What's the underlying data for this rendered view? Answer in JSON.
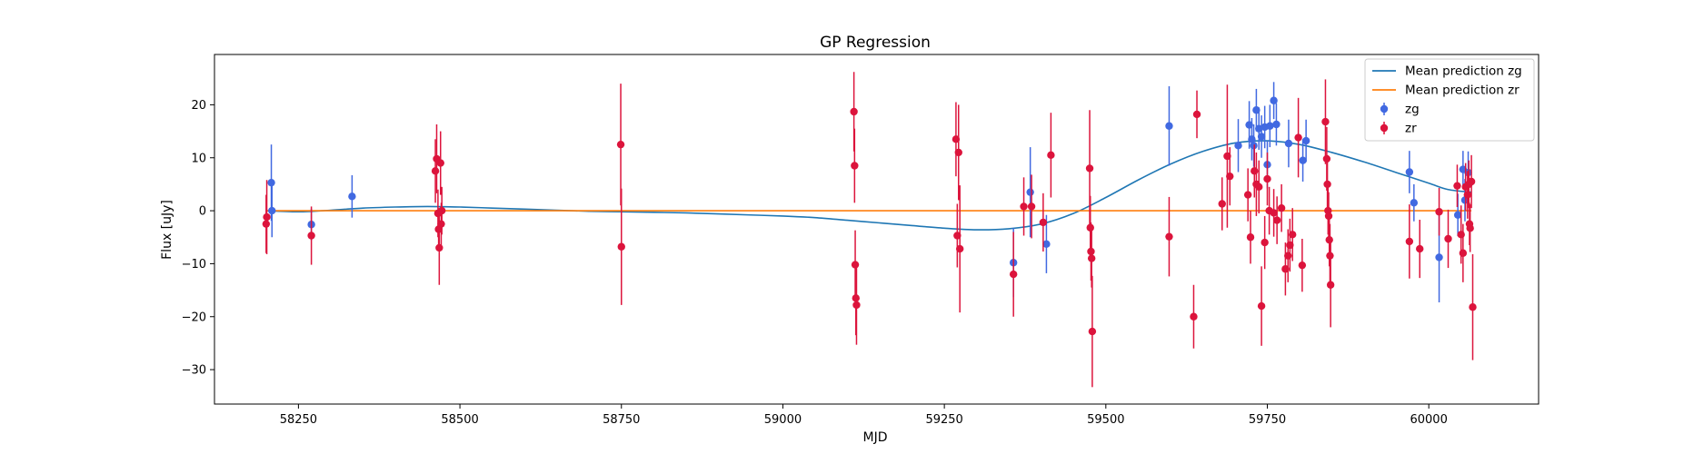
{
  "chart_data": {
    "type": "scatter",
    "title": "GP Regression",
    "xlabel": "MJD",
    "ylabel": "Flux [uJy]",
    "xlim": [
      58120,
      60170
    ],
    "ylim": [
      -36.5,
      29.5
    ],
    "xticks": [
      58250,
      58500,
      58750,
      59000,
      59250,
      59500,
      59750,
      60000
    ],
    "yticks": [
      -30,
      -20,
      -10,
      0,
      10,
      20
    ],
    "grid": false,
    "legend": "upper right",
    "lines": [
      {
        "name": "Mean prediction zg",
        "color": "#1f77b4",
        "x": [
          58200,
          58250,
          58300,
          58350,
          58400,
          58450,
          58500,
          58550,
          58600,
          58650,
          58700,
          58750,
          58800,
          58850,
          58900,
          58950,
          59000,
          59050,
          59100,
          59150,
          59200,
          59250,
          59300,
          59350,
          59400,
          59450,
          59500,
          59550,
          59600,
          59650,
          59700,
          59750,
          59800,
          59850,
          59900,
          59950,
          60000,
          60030,
          60066
        ],
        "y": [
          0.0,
          -0.2,
          0.1,
          0.5,
          0.7,
          0.8,
          0.7,
          0.5,
          0.3,
          0.1,
          -0.1,
          -0.2,
          -0.3,
          -0.4,
          -0.6,
          -0.8,
          -1.0,
          -1.3,
          -1.8,
          -2.3,
          -2.8,
          -3.3,
          -3.6,
          -3.4,
          -2.5,
          -0.5,
          2.5,
          5.8,
          8.8,
          11.2,
          12.8,
          13.2,
          12.5,
          11.0,
          9.2,
          7.2,
          5.2,
          4.0,
          3.5
        ]
      },
      {
        "name": "Mean prediction zr",
        "color": "#ff7f0e",
        "x": [
          58200,
          60066
        ],
        "y": [
          0.0,
          0.0
        ]
      }
    ],
    "series": [
      {
        "name": "zg",
        "color": "#4169e1",
        "points": [
          {
            "x": 58208,
            "y": 5.3,
            "err": 7.2
          },
          {
            "x": 58209,
            "y": 0.0,
            "err": 5.0
          },
          {
            "x": 58270,
            "y": -2.6,
            "err": 3.0
          },
          {
            "x": 58333,
            "y": 2.7,
            "err": 4.0
          },
          {
            "x": 59357,
            "y": -9.8,
            "err": 6.5
          },
          {
            "x": 59383,
            "y": 3.5,
            "err": 8.5
          },
          {
            "x": 59408,
            "y": -6.3,
            "err": 5.5
          },
          {
            "x": 59598,
            "y": 16.0,
            "err": 7.5
          },
          {
            "x": 59705,
            "y": 12.3,
            "err": 5.0
          },
          {
            "x": 59722,
            "y": 16.2,
            "err": 4.5
          },
          {
            "x": 59726,
            "y": 13.5,
            "err": 4.0
          },
          {
            "x": 59729,
            "y": 12.3,
            "err": 4.0
          },
          {
            "x": 59733,
            "y": 19.0,
            "err": 4.0
          },
          {
            "x": 59737,
            "y": 15.5,
            "err": 4.0
          },
          {
            "x": 59741,
            "y": 14.0,
            "err": 4.0
          },
          {
            "x": 59746,
            "y": 15.8,
            "err": 4.0
          },
          {
            "x": 59750,
            "y": 8.7,
            "err": 4.5
          },
          {
            "x": 59754,
            "y": 16.0,
            "err": 4.0
          },
          {
            "x": 59760,
            "y": 20.8,
            "err": 3.5
          },
          {
            "x": 59764,
            "y": 16.3,
            "err": 4.0
          },
          {
            "x": 59783,
            "y": 12.7,
            "err": 4.5
          },
          {
            "x": 59805,
            "y": 9.5,
            "err": 4.0
          },
          {
            "x": 59810,
            "y": 13.2,
            "err": 4.0
          },
          {
            "x": 59970,
            "y": 7.3,
            "err": 4.0
          },
          {
            "x": 59977,
            "y": 1.5,
            "err": 3.5
          },
          {
            "x": 60016,
            "y": -8.8,
            "err": 8.5
          },
          {
            "x": 60045,
            "y": -0.8,
            "err": 4.0
          },
          {
            "x": 60053,
            "y": 7.8,
            "err": 3.5
          },
          {
            "x": 60056,
            "y": 2.0,
            "err": 4.0
          },
          {
            "x": 60061,
            "y": 7.2,
            "err": 4.0
          }
        ]
      },
      {
        "name": "zr",
        "color": "#dc143c",
        "points": [
          {
            "x": 58200,
            "y": -2.5,
            "err": 5.5
          },
          {
            "x": 58201,
            "y": -1.2,
            "err": 7.0
          },
          {
            "x": 58270,
            "y": -4.7,
            "err": 5.5
          },
          {
            "x": 58462,
            "y": 7.5,
            "err": 6.0
          },
          {
            "x": 58464,
            "y": 9.8,
            "err": 6.5
          },
          {
            "x": 58466,
            "y": -0.5,
            "err": 4.5
          },
          {
            "x": 58467,
            "y": -3.5,
            "err": 4.0
          },
          {
            "x": 58468,
            "y": -7.0,
            "err": 7.0
          },
          {
            "x": 58470,
            "y": 9.0,
            "err": 6.0
          },
          {
            "x": 58471,
            "y": -2.5,
            "err": 4.0
          },
          {
            "x": 58472,
            "y": 0.0,
            "err": 4.5
          },
          {
            "x": 58749,
            "y": 12.5,
            "err": 11.5
          },
          {
            "x": 58750,
            "y": -6.8,
            "err": 11.0
          },
          {
            "x": 59110,
            "y": 18.7,
            "err": 7.5
          },
          {
            "x": 59111,
            "y": 8.5,
            "err": 7.0
          },
          {
            "x": 59112,
            "y": -10.2,
            "err": 6.5
          },
          {
            "x": 59113,
            "y": -16.5,
            "err": 7.0
          },
          {
            "x": 59114,
            "y": -17.8,
            "err": 7.5
          },
          {
            "x": 59268,
            "y": 13.5,
            "err": 7.0
          },
          {
            "x": 59270,
            "y": -4.7,
            "err": 6.0
          },
          {
            "x": 59272,
            "y": 11.0,
            "err": 9.0
          },
          {
            "x": 59274,
            "y": -7.2,
            "err": 12.0
          },
          {
            "x": 59357,
            "y": -12.0,
            "err": 8.0
          },
          {
            "x": 59373,
            "y": 0.8,
            "err": 5.5
          },
          {
            "x": 59385,
            "y": 0.8,
            "err": 6.0
          },
          {
            "x": 59403,
            "y": -2.2,
            "err": 5.5
          },
          {
            "x": 59415,
            "y": 10.5,
            "err": 8.0
          },
          {
            "x": 59475,
            "y": 8.0,
            "err": 11.0
          },
          {
            "x": 59476,
            "y": -3.2,
            "err": 6.0
          },
          {
            "x": 59477,
            "y": -7.7,
            "err": 5.5
          },
          {
            "x": 59478,
            "y": -9.0,
            "err": 5.5
          },
          {
            "x": 59479,
            "y": -22.8,
            "err": 10.5
          },
          {
            "x": 59598,
            "y": -4.9,
            "err": 7.5
          },
          {
            "x": 59636,
            "y": -20.0,
            "err": 6.0
          },
          {
            "x": 59641,
            "y": 18.2,
            "err": 4.5
          },
          {
            "x": 59680,
            "y": 1.3,
            "err": 5.0
          },
          {
            "x": 59688,
            "y": 10.3,
            "err": 13.5
          },
          {
            "x": 59692,
            "y": 6.5,
            "err": 5.5
          },
          {
            "x": 59720,
            "y": 3.0,
            "err": 5.0
          },
          {
            "x": 59724,
            "y": -5.0,
            "err": 5.0
          },
          {
            "x": 59730,
            "y": 7.5,
            "err": 5.0
          },
          {
            "x": 59733,
            "y": 5.0,
            "err": 6.0
          },
          {
            "x": 59737,
            "y": 4.5,
            "err": 5.0
          },
          {
            "x": 59741,
            "y": -18.0,
            "err": 7.5
          },
          {
            "x": 59746,
            "y": -6.0,
            "err": 5.0
          },
          {
            "x": 59750,
            "y": 6.0,
            "err": 5.0
          },
          {
            "x": 59753,
            "y": 0.0,
            "err": 4.5
          },
          {
            "x": 59760,
            "y": -0.4,
            "err": 4.5
          },
          {
            "x": 59765,
            "y": -1.8,
            "err": 4.5
          },
          {
            "x": 59772,
            "y": 0.5,
            "err": 4.5
          },
          {
            "x": 59778,
            "y": -11.0,
            "err": 5.0
          },
          {
            "x": 59782,
            "y": -8.5,
            "err": 5.0
          },
          {
            "x": 59785,
            "y": -6.5,
            "err": 5.0
          },
          {
            "x": 59789,
            "y": -4.5,
            "err": 5.0
          },
          {
            "x": 59798,
            "y": 13.8,
            "err": 7.5
          },
          {
            "x": 59804,
            "y": -10.3,
            "err": 5.0
          },
          {
            "x": 59840,
            "y": 16.8,
            "err": 8.0
          },
          {
            "x": 59842,
            "y": 9.8,
            "err": 6.0
          },
          {
            "x": 59843,
            "y": 5.0,
            "err": 5.5
          },
          {
            "x": 59844,
            "y": 0.0,
            "err": 4.5
          },
          {
            "x": 59845,
            "y": -1.0,
            "err": 4.5
          },
          {
            "x": 59846,
            "y": -5.5,
            "err": 5.0
          },
          {
            "x": 59847,
            "y": -8.5,
            "err": 6.0
          },
          {
            "x": 59848,
            "y": -14.0,
            "err": 8.0
          },
          {
            "x": 59970,
            "y": -5.8,
            "err": 7.0
          },
          {
            "x": 59986,
            "y": -7.2,
            "err": 5.5
          },
          {
            "x": 60016,
            "y": -0.2,
            "err": 4.5
          },
          {
            "x": 60030,
            "y": -5.3,
            "err": 5.5
          },
          {
            "x": 60044,
            "y": 4.7,
            "err": 4.0
          },
          {
            "x": 60050,
            "y": -4.5,
            "err": 5.5
          },
          {
            "x": 60053,
            "y": -8.0,
            "err": 5.5
          },
          {
            "x": 60057,
            "y": 4.5,
            "err": 4.5
          },
          {
            "x": 60060,
            "y": 3.0,
            "err": 4.5
          },
          {
            "x": 60062,
            "y": 5.0,
            "err": 4.5
          },
          {
            "x": 60063,
            "y": -2.5,
            "err": 4.0
          },
          {
            "x": 60064,
            "y": -3.3,
            "err": 4.5
          },
          {
            "x": 60066,
            "y": 5.5,
            "err": 5.0
          },
          {
            "x": 60068,
            "y": -18.2,
            "err": 10.0
          }
        ]
      }
    ]
  }
}
